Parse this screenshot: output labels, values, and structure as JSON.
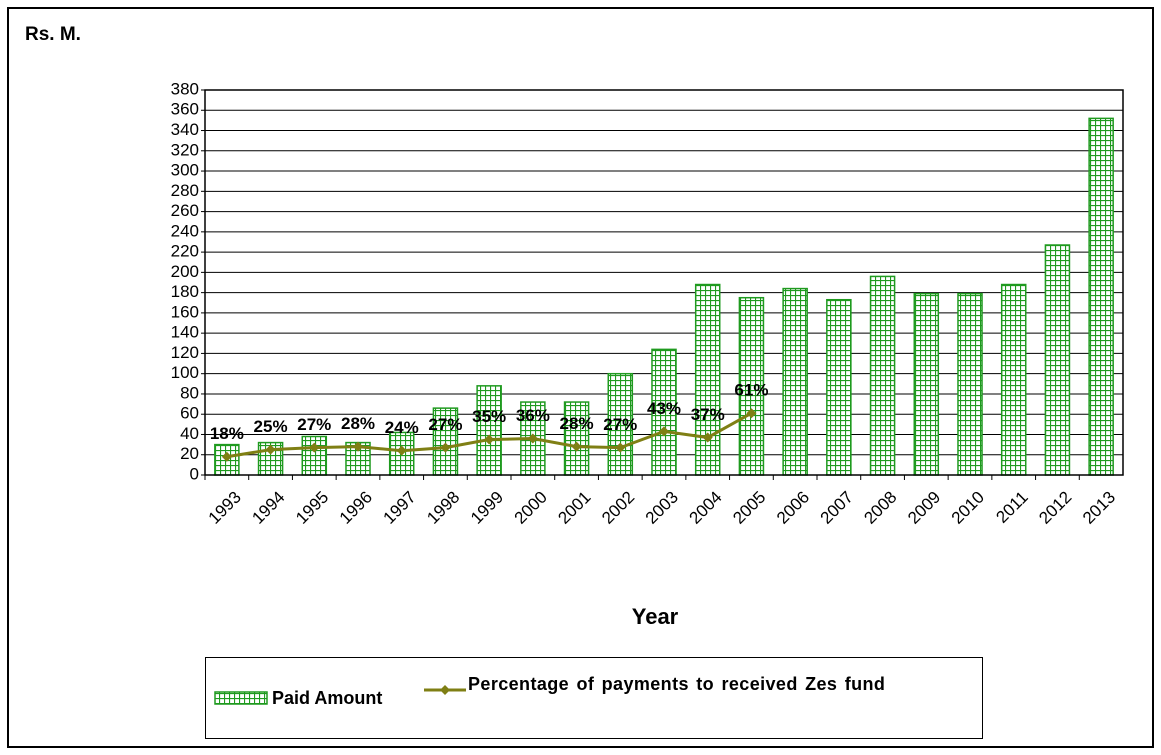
{
  "chart_data": {
    "type": "bar",
    "y_label": "Rs. M.",
    "x_label": "Year",
    "categories": [
      "1993",
      "1994",
      "1995",
      "1996",
      "1997",
      "1998",
      "1999",
      "2000",
      "2001",
      "2002",
      "2003",
      "2004",
      "2005",
      "2006",
      "2007",
      "2008",
      "2009",
      "2010",
      "2011",
      "2012",
      "2013"
    ],
    "series": [
      {
        "name": "Paid Amount",
        "type": "bar",
        "color": "#1f9a1f",
        "values": [
          30,
          32,
          38,
          32,
          42,
          66,
          88,
          72,
          72,
          100,
          124,
          188,
          175,
          184,
          173,
          196,
          179,
          179,
          188,
          227,
          352
        ]
      },
      {
        "name": "Percentage of payments to received Zes fund",
        "type": "line",
        "color": "#7f7f14",
        "values": [
          18,
          25,
          27,
          28,
          24,
          27,
          35,
          36,
          28,
          27,
          43,
          37,
          61,
          null,
          null,
          null,
          null,
          null,
          null,
          null,
          null
        ],
        "value_labels": [
          "18%",
          "25%",
          "27%",
          "28%",
          "24%",
          "27%",
          "35%",
          "36%",
          "28%",
          "27%",
          "43%",
          "37%",
          "61%",
          null,
          null,
          null,
          null,
          null,
          null,
          null,
          null
        ]
      }
    ],
    "ylim": [
      0,
      380
    ],
    "yticks": [
      0,
      20,
      40,
      60,
      80,
      100,
      120,
      140,
      160,
      180,
      200,
      220,
      240,
      260,
      280,
      300,
      320,
      340,
      360,
      380
    ],
    "grid": true,
    "legend": "bottom"
  }
}
